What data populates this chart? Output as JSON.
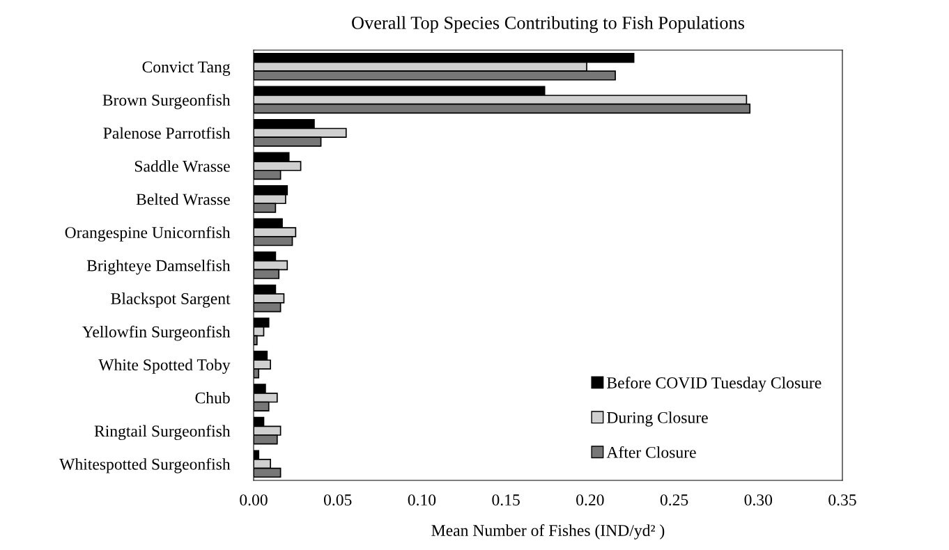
{
  "chart_data": {
    "type": "bar",
    "orientation": "horizontal",
    "title": "Overall Top Species Contributing to Fish Populations",
    "xlabel": "Mean Number of Fishes (IND/yd² )",
    "categories": [
      "Convict Tang",
      "Brown Surgeonfish",
      "Palenose Parrotfish",
      "Saddle Wrasse",
      "Belted Wrasse",
      "Orangespine Unicornfish",
      "Brighteye Damselfish",
      "Blackspot Sargent",
      "Yellowfin Surgeonfish",
      "White Spotted Toby",
      "Chub",
      "Ringtail Surgeonfish",
      "Whitespotted Surgeonfish"
    ],
    "series": [
      {
        "name": "Before COVID Tuesday Closure",
        "color": "#000000",
        "values": [
          0.226,
          0.173,
          0.036,
          0.021,
          0.02,
          0.017,
          0.013,
          0.013,
          0.009,
          0.008,
          0.007,
          0.006,
          0.003
        ]
      },
      {
        "name": "During Closure",
        "color": "#d0d0d0",
        "values": [
          0.198,
          0.293,
          0.055,
          0.028,
          0.019,
          0.025,
          0.02,
          0.018,
          0.006,
          0.01,
          0.014,
          0.016,
          0.01
        ]
      },
      {
        "name": "After Closure",
        "color": "#777777",
        "values": [
          0.215,
          0.295,
          0.04,
          0.016,
          0.013,
          0.023,
          0.015,
          0.016,
          0.002,
          0.003,
          0.009,
          0.014,
          0.016
        ]
      }
    ],
    "xlim": [
      0,
      0.35
    ],
    "xticks": [
      {
        "value": 0,
        "label": "0.00"
      },
      {
        "value": 0.05,
        "label": "0.05"
      },
      {
        "value": 0.1,
        "label": "0.10"
      },
      {
        "value": 0.15,
        "label": "0.15"
      },
      {
        "value": 0.2,
        "label": "0.20"
      },
      {
        "value": 0.25,
        "label": "0.25"
      },
      {
        "value": 0.3,
        "label": "0.30"
      },
      {
        "value": 0.35,
        "label": "0.35"
      }
    ],
    "grid": false,
    "legend": "bottom right"
  }
}
